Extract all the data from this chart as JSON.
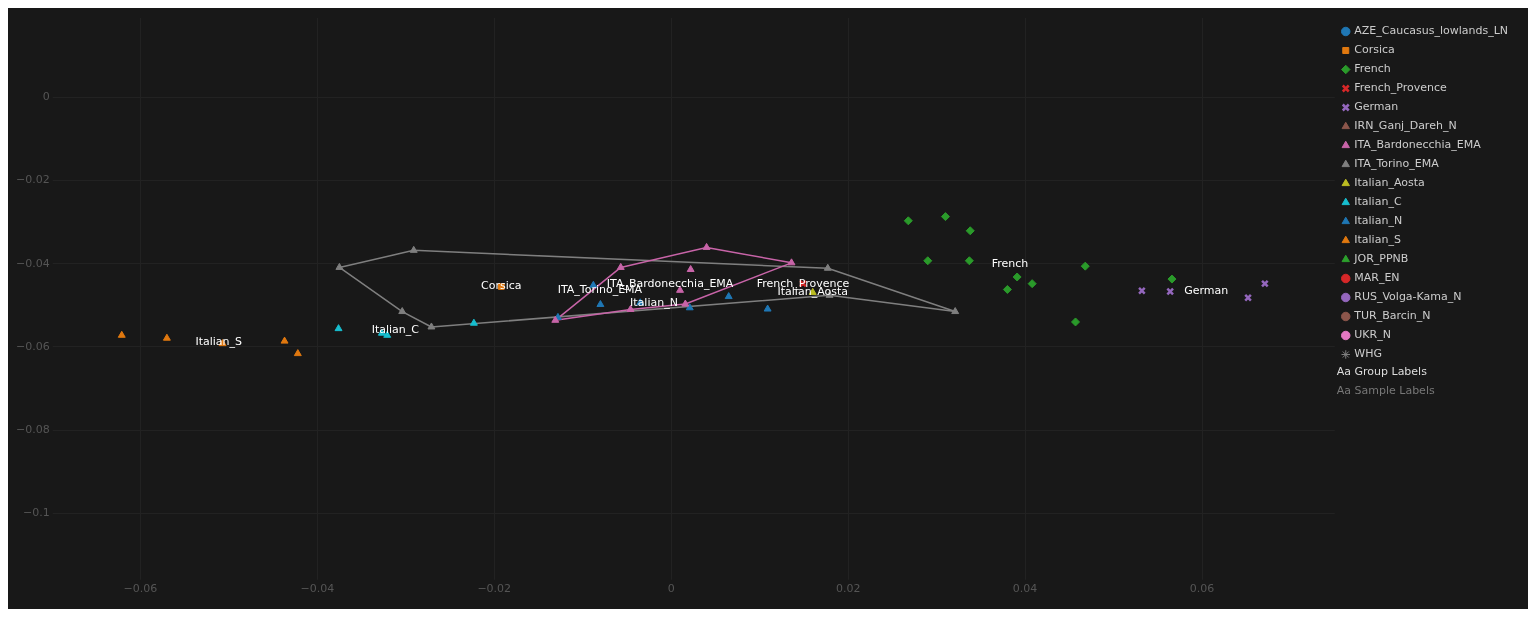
{
  "chart_data": {
    "type": "scatter",
    "xlim": [
      -0.069,
      0.075
    ],
    "ylim": [
      -0.114,
      0.019
    ],
    "xticks": [
      {
        "value": -0.06,
        "label": "−0.06"
      },
      {
        "value": -0.04,
        "label": "−0.04"
      },
      {
        "value": -0.02,
        "label": "−0.02"
      },
      0,
      0.02,
      0.04,
      0.06
    ],
    "yticks": [
      {
        "value": -0.1,
        "label": "−0.1"
      },
      {
        "value": -0.08,
        "label": "−0.08"
      },
      {
        "value": -0.06,
        "label": "−0.06"
      },
      {
        "value": -0.04,
        "label": "−0.04"
      },
      {
        "value": -0.02,
        "label": "−0.02"
      },
      0
    ],
    "grid": true,
    "legend": "top right",
    "series": [
      {
        "name": "AZE_Caucasus_lowlands_LN",
        "color": "#1f77b4",
        "marker": "circle"
      },
      {
        "name": "Corsica",
        "color": "#e0780f",
        "marker": "square",
        "x": [
          -0.0192
        ],
        "values": [
          -0.0455
        ]
      },
      {
        "name": "French",
        "color": "#2a9a2a",
        "marker": "diamond",
        "x": [
          0.0268,
          0.031,
          0.0338,
          0.029,
          0.0337,
          0.0468,
          0.0391,
          0.0408,
          0.038,
          0.0566,
          0.0457
        ],
        "values": [
          -0.0297,
          -0.0287,
          -0.0321,
          -0.0393,
          -0.0393,
          -0.0406,
          -0.0432,
          -0.0448,
          -0.0462,
          -0.0437,
          -0.054
        ]
      },
      {
        "name": "French_Provence",
        "color": "#d62728",
        "marker": "cross",
        "x": [
          0.0149
        ],
        "values": [
          -0.0448
        ]
      },
      {
        "name": "German",
        "color": "#9467bd",
        "marker": "cross",
        "x": [
          0.0532,
          0.0564,
          0.0671,
          0.0652
        ],
        "values": [
          -0.0465,
          -0.0467,
          -0.0448,
          -0.0482
        ]
      },
      {
        "name": "IRN_Ganj_Dareh_N",
        "color": "#8c564b",
        "marker": "triangle"
      },
      {
        "name": "ITA_Bardonecchia_EMA",
        "color": "#c864a8",
        "marker": "triangle",
        "x": [
          -0.0131,
          -0.0057,
          0.004,
          0.0136,
          0.0016,
          -0.0046,
          0.0022,
          0.001
        ],
        "values": [
          -0.0536,
          -0.0409,
          -0.0361,
          -0.0398,
          -0.0497,
          -0.051,
          -0.0414,
          -0.0464
        ]
      },
      {
        "name": "ITA_Torino_EMA",
        "color": "#7f7f7f",
        "marker": "triangle",
        "x": [
          -0.0375,
          -0.0291,
          0.0177,
          0.0321,
          0.0179,
          -0.0271,
          -0.0304
        ],
        "values": [
          -0.0409,
          -0.0368,
          -0.0411,
          -0.0515,
          -0.0476,
          -0.0552,
          -0.0515
        ]
      },
      {
        "name": "Italian_Aosta",
        "color": "#bcbd22",
        "marker": "triangle",
        "x": [
          0.016
        ],
        "values": [
          -0.0469
        ]
      },
      {
        "name": "Italian_C",
        "color": "#17becf",
        "marker": "triangle",
        "x": [
          -0.0376,
          -0.0327,
          -0.0321,
          -0.0223
        ],
        "values": [
          -0.0556,
          -0.0567,
          -0.0572,
          -0.0543
        ]
      },
      {
        "name": "Italian_N",
        "color": "#1f77b4",
        "marker": "triangle",
        "x": [
          -0.0088,
          -0.008,
          0.0065,
          0.0021,
          0.0109,
          -0.0128,
          -0.0035
        ],
        "values": [
          -0.0452,
          -0.0498,
          -0.0479,
          -0.0506,
          -0.0509,
          -0.0529,
          -0.0494
        ]
      },
      {
        "name": "Italian_S",
        "color": "#e0780f",
        "marker": "triangle",
        "x": [
          -0.0621,
          -0.057,
          -0.0437,
          -0.0422,
          -0.0507
        ],
        "values": [
          -0.0572,
          -0.0579,
          -0.0586,
          -0.0616,
          -0.0592
        ]
      },
      {
        "name": "JOR_PPNB",
        "color": "#2ca02c",
        "marker": "triangle"
      },
      {
        "name": "MAR_EN",
        "color": "#d62728",
        "marker": "circle"
      },
      {
        "name": "RUS_Volga-Kama_N",
        "color": "#9467bd",
        "marker": "circle"
      },
      {
        "name": "TUR_Barcin_N",
        "color": "#8c564b",
        "marker": "circle"
      },
      {
        "name": "UKR_N",
        "color": "#e377c2",
        "marker": "circle"
      },
      {
        "name": "WHG",
        "color": "#7f7f7f",
        "marker": "star"
      },
      {
        "type": "line",
        "color": "#c864a8",
        "marker": "none",
        "x": [
          -0.0131,
          -0.0057,
          0.004,
          0.0136
        ],
        "values": [
          -0.0536,
          -0.0409,
          -0.0361,
          -0.0398
        ]
      },
      {
        "type": "line",
        "color": "#c864a8",
        "marker": "none",
        "x": [
          -0.0131,
          -0.0046,
          0.0016,
          0.0136
        ],
        "values": [
          -0.0536,
          -0.051,
          -0.0497,
          -0.0398
        ]
      },
      {
        "type": "line",
        "color": "#7f7f7f",
        "marker": "none",
        "x": [
          -0.0375,
          -0.0291,
          0.0177,
          0.0321
        ],
        "values": [
          -0.0409,
          -0.0368,
          -0.0411,
          -0.0515
        ]
      },
      {
        "type": "line",
        "color": "#7f7f7f",
        "marker": "none",
        "x": [
          -0.0375,
          -0.0304,
          -0.0271,
          0.0179,
          0.0321
        ],
        "values": [
          -0.0409,
          -0.0515,
          -0.0552,
          -0.0476,
          -0.0515
        ]
      }
    ],
    "annotations": [
      "Aa Group Labels",
      "Aa Sample Labels"
    ]
  }
}
